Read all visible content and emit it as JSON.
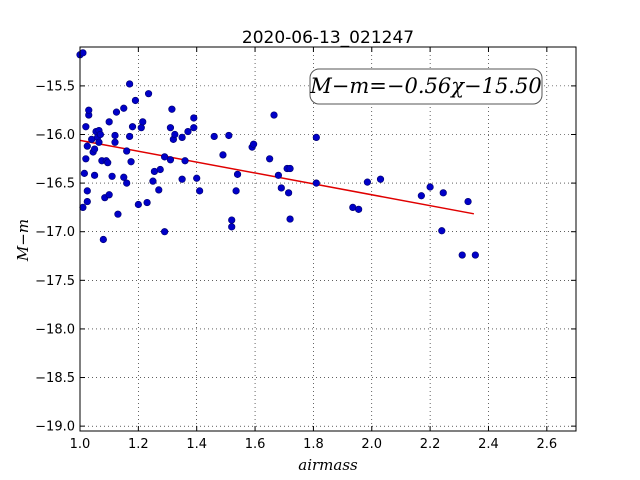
{
  "chart_data": {
    "type": "scatter",
    "title": "2020-06-13_021247",
    "xlabel": "airmass",
    "ylabel": "M−m",
    "xlim": [
      1.0,
      2.7
    ],
    "ylim": [
      -19.05,
      -15.1
    ],
    "xticks": [
      "1.0",
      "1.2",
      "1.4",
      "1.6",
      "1.8",
      "2.0",
      "2.2",
      "2.4",
      "2.6"
    ],
    "yticks": [
      "−15.5",
      "−16.0",
      "−16.5",
      "−17.0",
      "−17.5",
      "−18.0",
      "−18.5",
      "−19.0"
    ],
    "grid": true,
    "annotation": "M−m=−0.56χ−15.50",
    "fit": {
      "slope": -0.56,
      "intercept": -15.5,
      "x_range": [
        1.0,
        2.35
      ],
      "color": "#e00000"
    },
    "point_color": "#0000c8",
    "points": [
      [
        1.0,
        -15.18
      ],
      [
        1.01,
        -15.16
      ],
      [
        1.01,
        -16.75
      ],
      [
        1.015,
        -16.4
      ],
      [
        1.02,
        -15.92
      ],
      [
        1.02,
        -16.25
      ],
      [
        1.025,
        -16.12
      ],
      [
        1.025,
        -16.58
      ],
      [
        1.025,
        -16.69
      ],
      [
        1.03,
        -15.8
      ],
      [
        1.03,
        -15.75
      ],
      [
        1.04,
        -16.05
      ],
      [
        1.045,
        -16.18
      ],
      [
        1.05,
        -16.42
      ],
      [
        1.05,
        -16.15
      ],
      [
        1.055,
        -15.97
      ],
      [
        1.06,
        -16.03
      ],
      [
        1.065,
        -16.08
      ],
      [
        1.065,
        -15.96
      ],
      [
        1.07,
        -16.0
      ],
      [
        1.075,
        -16.27
      ],
      [
        1.08,
        -17.08
      ],
      [
        1.085,
        -16.65
      ],
      [
        1.09,
        -16.27
      ],
      [
        1.095,
        -16.29
      ],
      [
        1.1,
        -16.62
      ],
      [
        1.1,
        -15.87
      ],
      [
        1.11,
        -16.43
      ],
      [
        1.12,
        -16.08
      ],
      [
        1.12,
        -16.01
      ],
      [
        1.125,
        -15.77
      ],
      [
        1.13,
        -16.82
      ],
      [
        1.15,
        -16.44
      ],
      [
        1.15,
        -15.73
      ],
      [
        1.16,
        -16.5
      ],
      [
        1.16,
        -16.17
      ],
      [
        1.17,
        -15.48
      ],
      [
        1.17,
        -16.02
      ],
      [
        1.175,
        -16.28
      ],
      [
        1.18,
        -15.92
      ],
      [
        1.19,
        -15.65
      ],
      [
        1.2,
        -16.72
      ],
      [
        1.21,
        -15.93
      ],
      [
        1.215,
        -15.87
      ],
      [
        1.23,
        -16.7
      ],
      [
        1.235,
        -15.58
      ],
      [
        1.25,
        -16.48
      ],
      [
        1.255,
        -16.38
      ],
      [
        1.27,
        -16.57
      ],
      [
        1.275,
        -16.36
      ],
      [
        1.29,
        -16.23
      ],
      [
        1.29,
        -17.0
      ],
      [
        1.31,
        -16.26
      ],
      [
        1.31,
        -15.93
      ],
      [
        1.315,
        -15.74
      ],
      [
        1.32,
        -16.05
      ],
      [
        1.325,
        -16.0
      ],
      [
        1.35,
        -16.03
      ],
      [
        1.35,
        -16.46
      ],
      [
        1.36,
        -16.27
      ],
      [
        1.37,
        -15.97
      ],
      [
        1.39,
        -15.83
      ],
      [
        1.39,
        -15.93
      ],
      [
        1.4,
        -16.45
      ],
      [
        1.41,
        -16.58
      ],
      [
        1.46,
        -16.02
      ],
      [
        1.49,
        -16.21
      ],
      [
        1.51,
        -16.01
      ],
      [
        1.52,
        -16.88
      ],
      [
        1.52,
        -16.95
      ],
      [
        1.535,
        -16.58
      ],
      [
        1.54,
        -16.41
      ],
      [
        1.59,
        -16.13
      ],
      [
        1.595,
        -16.1
      ],
      [
        1.65,
        -16.25
      ],
      [
        1.665,
        -15.8
      ],
      [
        1.68,
        -16.42
      ],
      [
        1.69,
        -16.55
      ],
      [
        1.71,
        -16.35
      ],
      [
        1.715,
        -16.6
      ],
      [
        1.72,
        -16.87
      ],
      [
        1.72,
        -16.35
      ],
      [
        1.81,
        -16.03
      ],
      [
        1.81,
        -16.5
      ],
      [
        1.935,
        -16.75
      ],
      [
        1.955,
        -16.77
      ],
      [
        1.985,
        -16.49
      ],
      [
        2.03,
        -16.46
      ],
      [
        2.17,
        -16.63
      ],
      [
        2.2,
        -16.54
      ],
      [
        2.24,
        -16.99
      ],
      [
        2.245,
        -16.6
      ],
      [
        2.31,
        -17.24
      ],
      [
        2.33,
        -16.69
      ],
      [
        2.355,
        -17.24
      ]
    ]
  }
}
